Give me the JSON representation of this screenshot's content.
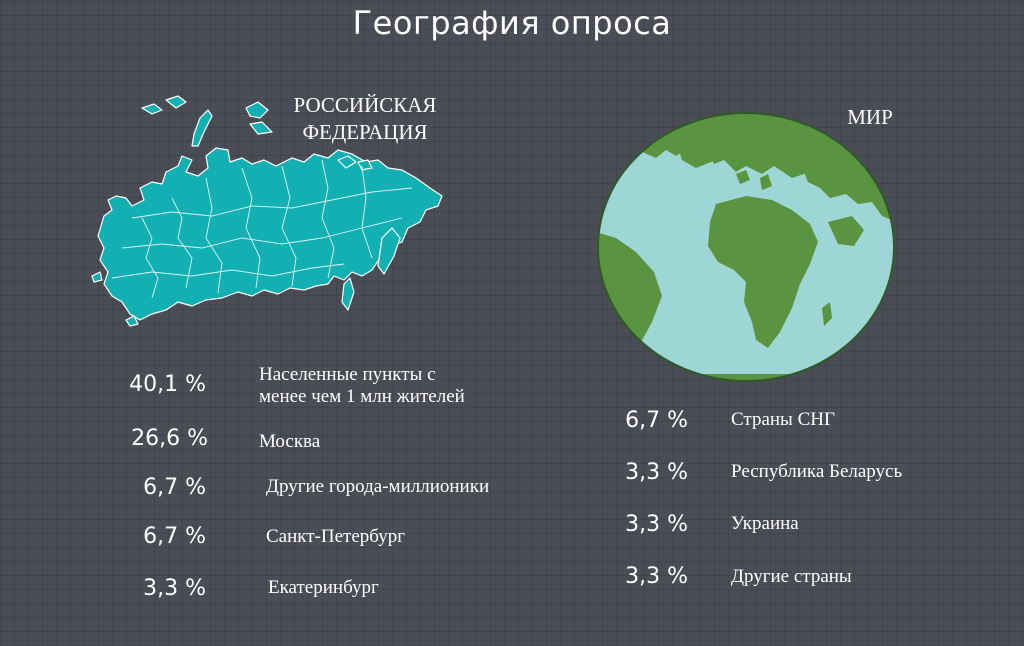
{
  "title": "География опроса",
  "russia": {
    "heading_line1": "РОССИЙСКАЯ",
    "heading_line2": "ФЕДЕРАЦИЯ",
    "map_color": "#13b0b3",
    "stats": [
      {
        "percent": "40,1 %",
        "label_line1": "Населенные пункты с",
        "label_line2": "менее чем 1 млн жителей"
      },
      {
        "percent": "26,6 %",
        "label_line1": "Москва"
      },
      {
        "percent": "6,7 %",
        "label_line1": "Другие города-миллионики"
      },
      {
        "percent": "6,7 %",
        "label_line1": "Санкт-Петербург"
      },
      {
        "percent": "3,3 %",
        "label_line1": "Екатеринбург"
      }
    ]
  },
  "world": {
    "heading": "МИР",
    "ocean_color": "#9ed6d6",
    "land_color": "#5a9440",
    "stats": [
      {
        "percent": "6,7 %",
        "label": "Страны СНГ"
      },
      {
        "percent": "3,3 %",
        "label": "Республика Беларусь"
      },
      {
        "percent": "3,3 %",
        "label": "Украина"
      },
      {
        "percent": "3,3 %",
        "label": "Другие страны"
      }
    ]
  }
}
